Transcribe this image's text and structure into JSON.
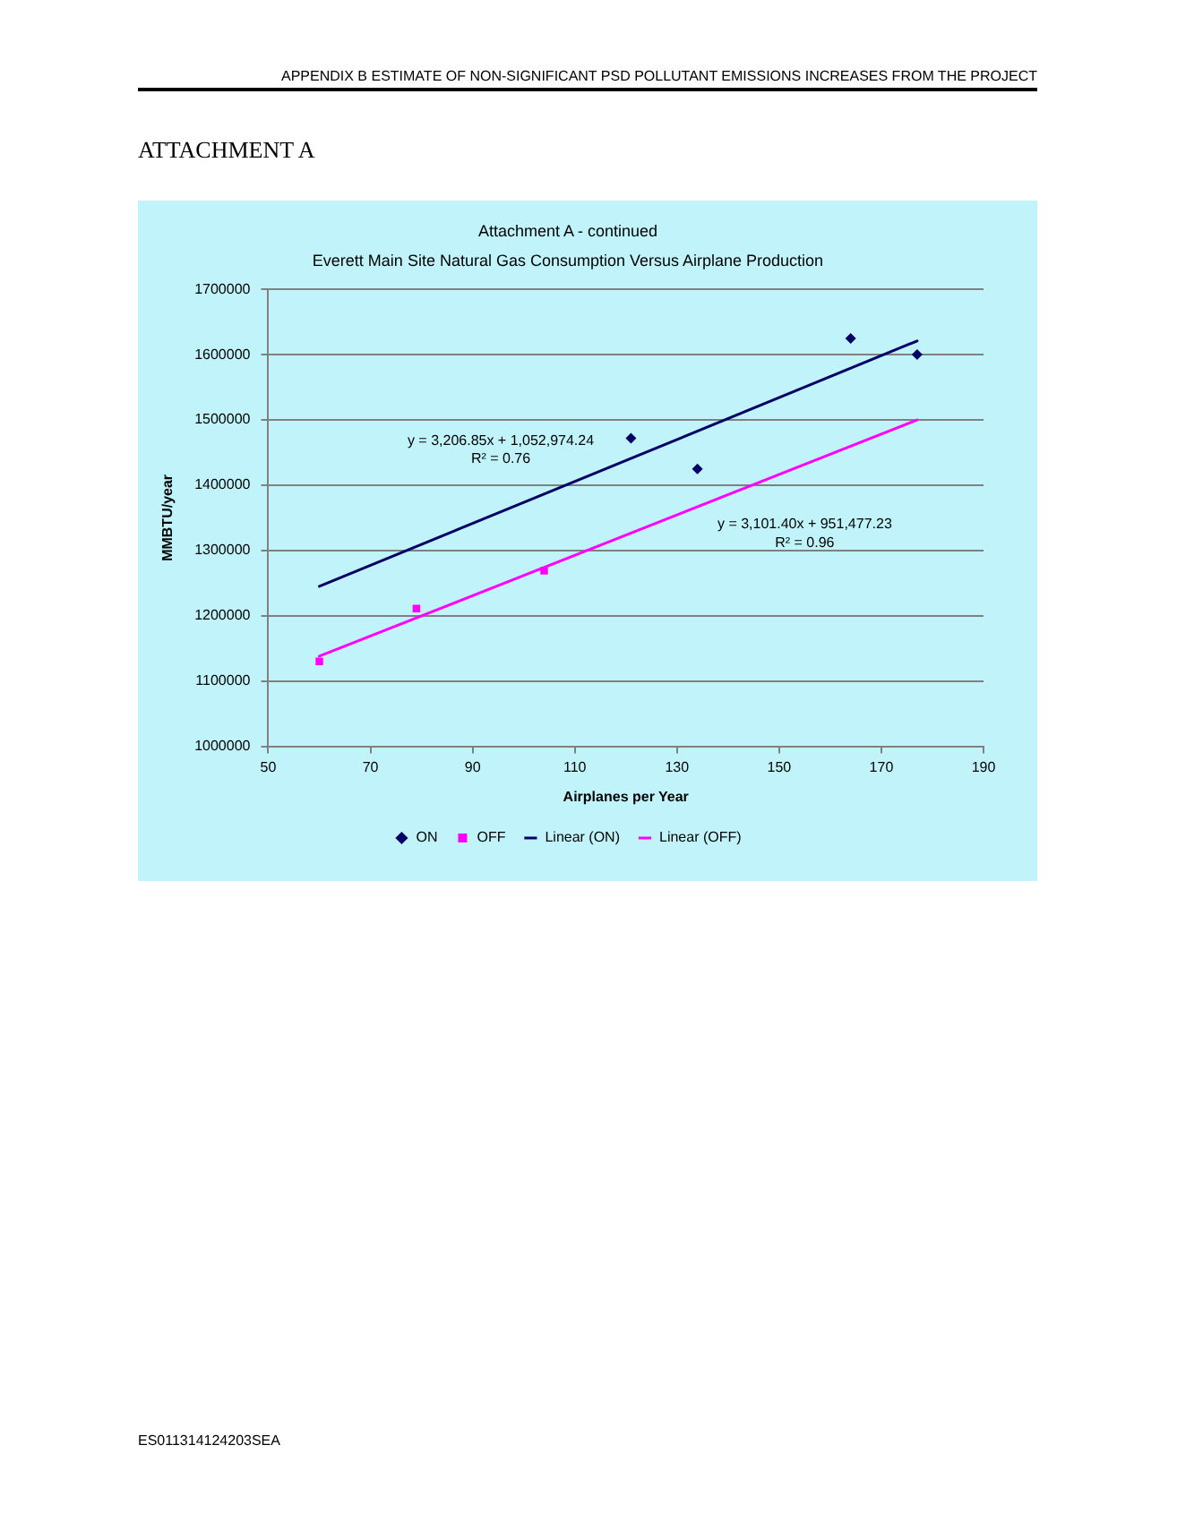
{
  "chart_data": {
    "type": "scatter",
    "title": "Attachment A - continued",
    "subtitle": "Everett Main Site Natural Gas Consumption Versus Airplane Production",
    "xlabel": "Airplanes per Year",
    "ylabel": "MMBTU/year",
    "xlim": [
      50,
      190
    ],
    "xticks": [
      50,
      70,
      90,
      110,
      130,
      150,
      170,
      190
    ],
    "ylim": [
      1000000,
      1700000
    ],
    "yticks": [
      1000000,
      1100000,
      1200000,
      1300000,
      1400000,
      1500000,
      1600000,
      1700000
    ],
    "grid": "y",
    "legend": "bottom",
    "series": [
      {
        "name": "ON",
        "type": "scatter",
        "marker": "diamond",
        "color": "#000066",
        "x": [
          121,
          134,
          164,
          177
        ],
        "values": [
          1472000,
          1425000,
          1625000,
          1600000
        ]
      },
      {
        "name": "OFF",
        "type": "scatter",
        "marker": "square",
        "color": "#ff00ff",
        "x": [
          60,
          79,
          104
        ],
        "values": [
          1130000,
          1211000,
          1269000
        ]
      },
      {
        "name": "Linear (ON)",
        "type": "line",
        "marker": "none",
        "color": "#000066",
        "x": [
          60,
          177
        ],
        "values": [
          1245000,
          1621000
        ]
      },
      {
        "name": "Linear (OFF)",
        "type": "line",
        "marker": "none",
        "color": "#ff00ff",
        "x": [
          60,
          177
        ],
        "values": [
          1138000,
          1500000
        ]
      }
    ],
    "annotations": [
      "APPENDIX B ESTIMATE OF NON-SIGNIFICANT PSD POLLUTANT EMISSIONS INCREASES FROM THE PROJECT",
      "ATTACHMENT A",
      "y = 3,206.85x + 1,052,974.24",
      "R² = 0.76",
      "y = 3,101.40x + 951,477.23",
      "R² = 0.96",
      "ES011314124203SEA"
    ]
  }
}
